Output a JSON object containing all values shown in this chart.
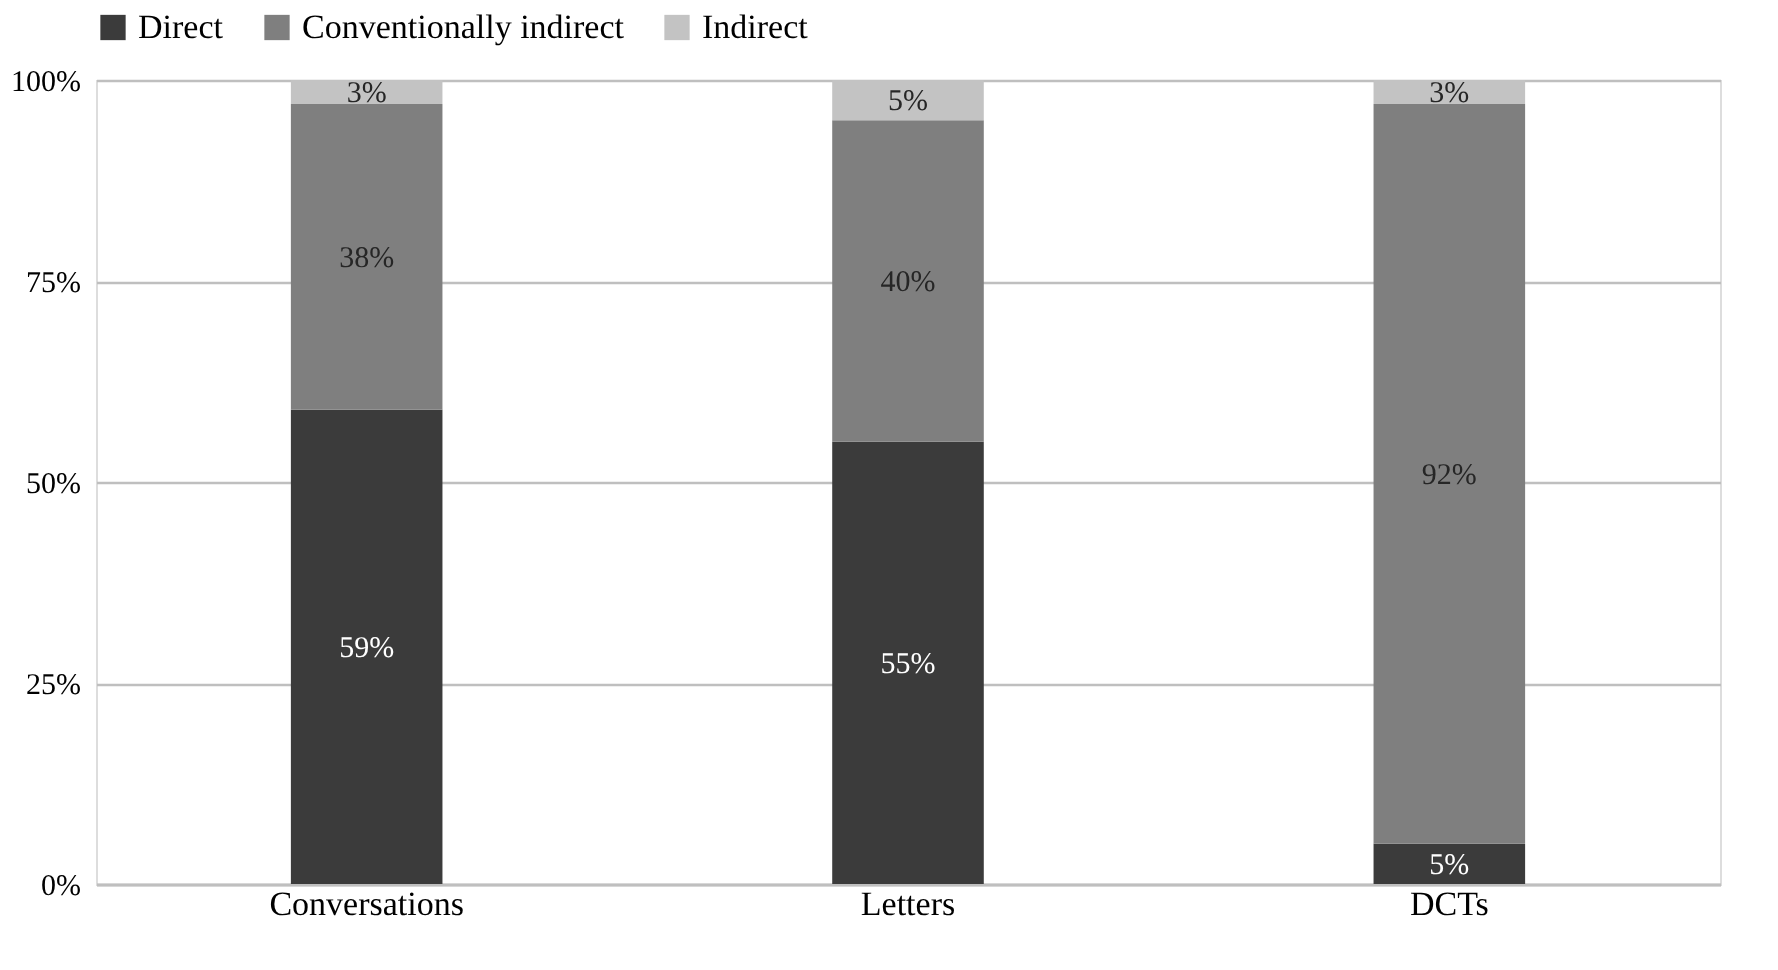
{
  "chart_data": {
    "type": "bar",
    "stacked": true,
    "categories": [
      "Conversations",
      "Letters",
      "DCTs"
    ],
    "series": [
      {
        "name": "Direct",
        "color": "#3b3b3b",
        "values": [
          59,
          55,
          5
        ],
        "value_labels": [
          "59%",
          "55%",
          "5%"
        ]
      },
      {
        "name": "Conventionally indirect",
        "color": "#7f7f7f",
        "values": [
          38,
          40,
          92
        ],
        "value_labels": [
          "38%",
          "40%",
          "92%"
        ]
      },
      {
        "name": "Indirect",
        "color": "#c3c3c3",
        "values": [
          3,
          5,
          3
        ],
        "value_labels": [
          "3%",
          "5%",
          "3%"
        ]
      }
    ],
    "ylim": [
      0,
      100
    ],
    "yticks": [
      {
        "value": 0,
        "label": "0%"
      },
      {
        "value": 25,
        "label": "25%"
      },
      {
        "value": 50,
        "label": "50%"
      },
      {
        "value": 75,
        "label": "75%"
      },
      {
        "value": 100,
        "label": "100%"
      }
    ],
    "grid": "y",
    "legend": "top"
  }
}
